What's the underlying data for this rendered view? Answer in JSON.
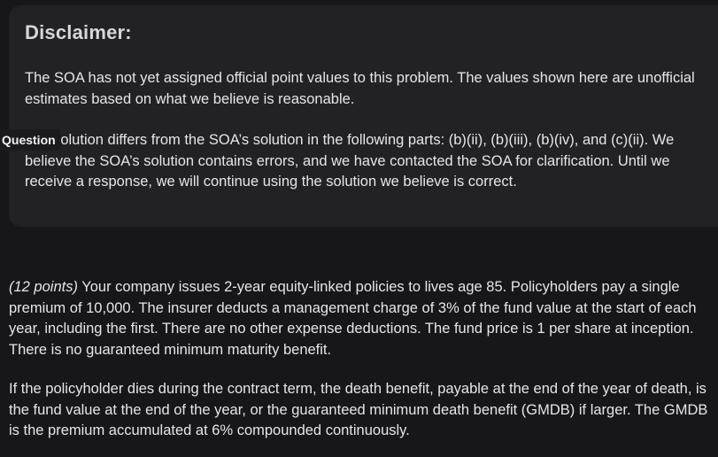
{
  "disclaimer": {
    "title": "Disclaimer:",
    "paragraph1": "The SOA has not yet assigned official point values to this problem. The values shown here are unofficial estimates based on what we believe is reasonable.",
    "paragraph2": "Our solution differs from the SOA’s solution in the following parts: (b)(ii), (b)(iii), (b)(iv), and (c)(ii). We believe the SOA’s solution contains errors, and we have contacted the SOA for clarification. Until we receive a response, we will continue using the solution we believe is correct."
  },
  "question_tab": {
    "label": "Question"
  },
  "question": {
    "points": "(12 points)",
    "paragraph1": " Your company issues 2-year equity-linked policies to lives age 85. Policyholders pay a single premium of 10,000. The insurer deducts a management charge of 3% of the fund value at the start of each year, including the first. There are no other expense deductions. The fund price is 1 per share at inception. There is no guaranteed minimum maturity benefit.",
    "paragraph2": "If the policyholder dies during the contract term, the death benefit, payable at the end of the year of death, is the fund value at the end of the year, or the guaranteed minimum death benefit (GMDB) if larger. The GMDB is the premium accumulated at 6% compounded continuously."
  }
}
